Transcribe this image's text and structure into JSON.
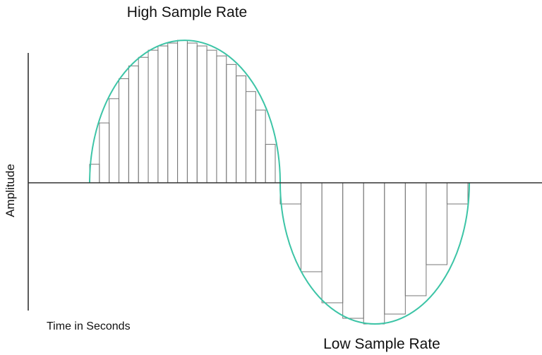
{
  "labels": {
    "high_rate": "High Sample Rate",
    "low_rate": "Low Sample Rate",
    "y_axis": "Amplitude",
    "x_axis": "Time in Seconds"
  },
  "colors": {
    "wave": "#3cc4a6",
    "bars": "#777777",
    "axis": "#333333"
  },
  "high_rate_samples": [
    0.13,
    0.42,
    0.59,
    0.73,
    0.82,
    0.88,
    0.93,
    0.96,
    0.98,
    1.0,
    0.98,
    0.96,
    0.93,
    0.89,
    0.83,
    0.75,
    0.64,
    0.51,
    0.27
  ],
  "low_rate_samples": [
    -0.15,
    -0.63,
    -0.85,
    -0.96,
    -1.0,
    -0.93,
    -0.8,
    -0.58,
    -0.15
  ]
}
